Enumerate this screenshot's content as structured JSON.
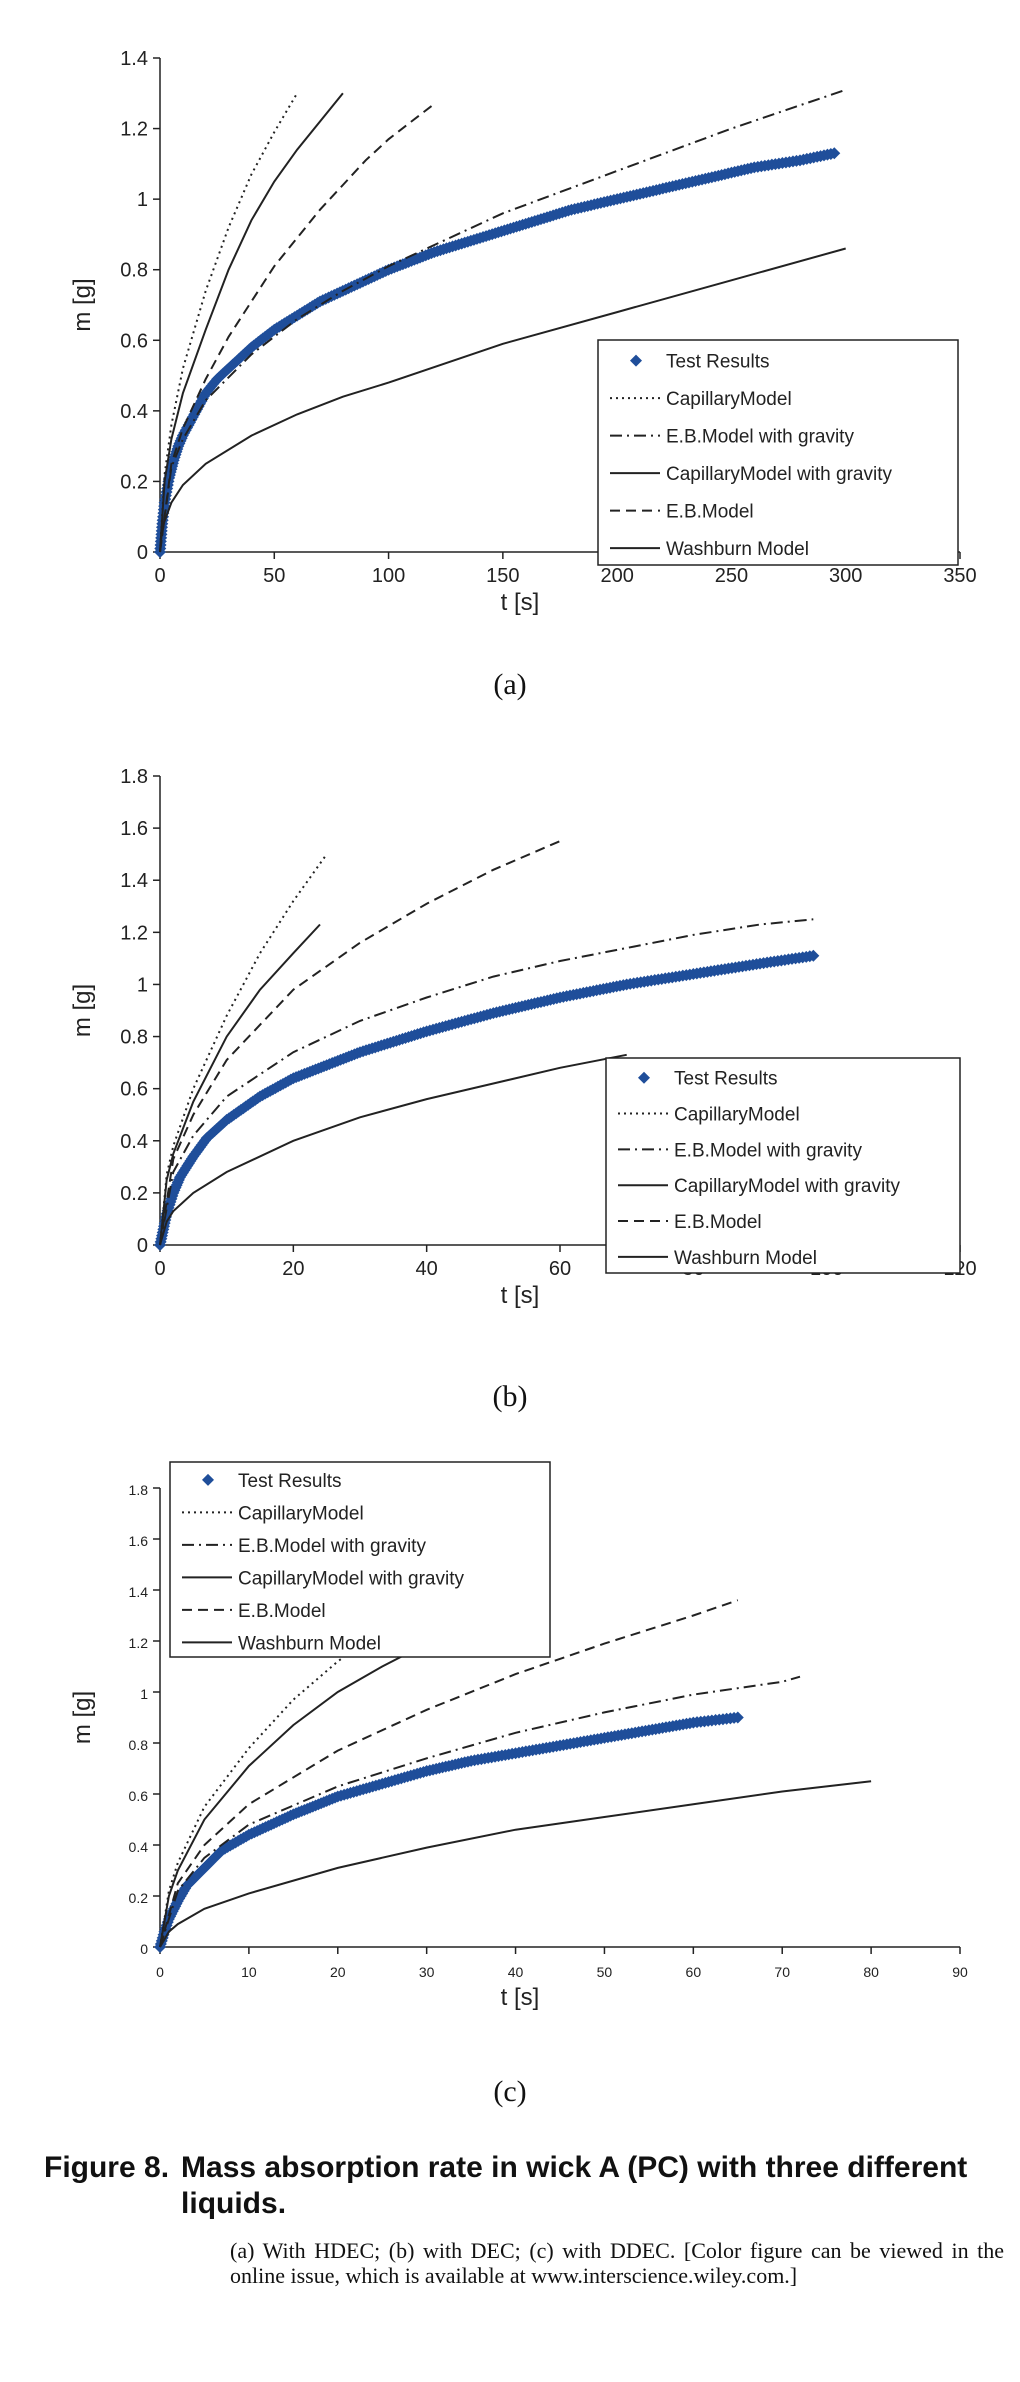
{
  "chart_data": [
    {
      "type": "scatter",
      "panel_label": "(a)",
      "xlabel": "t [s]",
      "ylabel": "m [g]",
      "xlim": [
        0,
        350
      ],
      "ylim": [
        0,
        1.4
      ],
      "xticks": [
        0,
        50,
        100,
        150,
        200,
        250,
        300,
        350
      ],
      "yticks": [
        0,
        0.2,
        0.4,
        0.6,
        0.8,
        1,
        1.2,
        1.4
      ],
      "xtick_labels": [
        "0",
        "50",
        "100",
        "150",
        "200",
        "250",
        "300",
        "350"
      ],
      "ytick_labels": [
        "0",
        "0.2",
        "0.4",
        "0.6",
        "0.8",
        "1",
        "1.2",
        "1.4"
      ],
      "grid": false,
      "legend_position": "center-right",
      "series": [
        {
          "name": "Test Results",
          "kind": "markers",
          "color": "#1f4e9a",
          "x": [
            0,
            1,
            2,
            4,
            6,
            8,
            10,
            15,
            20,
            25,
            30,
            40,
            50,
            60,
            70,
            80,
            90,
            100,
            120,
            140,
            160,
            180,
            200,
            220,
            240,
            260,
            280,
            295
          ],
          "y": [
            0,
            0.08,
            0.14,
            0.21,
            0.26,
            0.3,
            0.33,
            0.39,
            0.45,
            0.49,
            0.52,
            0.58,
            0.63,
            0.67,
            0.71,
            0.74,
            0.77,
            0.8,
            0.85,
            0.89,
            0.93,
            0.97,
            1.0,
            1.03,
            1.06,
            1.09,
            1.11,
            1.13
          ]
        },
        {
          "name": "CapillaryModel",
          "kind": "line",
          "dash": "dotted",
          "x": [
            0,
            2,
            5,
            10,
            20,
            30,
            40,
            50,
            60
          ],
          "y": [
            0,
            0.22,
            0.36,
            0.52,
            0.74,
            0.92,
            1.07,
            1.19,
            1.3
          ]
        },
        {
          "name": "E.B.Model with gravity",
          "kind": "line",
          "dash": "dashdot",
          "x": [
            0,
            5,
            10,
            20,
            40,
            60,
            80,
            100,
            120,
            150,
            200,
            250,
            300
          ],
          "y": [
            0,
            0.24,
            0.32,
            0.43,
            0.56,
            0.66,
            0.74,
            0.81,
            0.87,
            0.96,
            1.08,
            1.2,
            1.31
          ]
        },
        {
          "name": "CapillaryModel with gravity",
          "kind": "line",
          "dash": "solid",
          "x": [
            0,
            2,
            5,
            10,
            20,
            30,
            40,
            50,
            60,
            70,
            80
          ],
          "y": [
            0,
            0.2,
            0.32,
            0.45,
            0.63,
            0.8,
            0.94,
            1.05,
            1.14,
            1.22,
            1.3
          ]
        },
        {
          "name": "E.B.Model",
          "kind": "line",
          "dash": "dashed",
          "x": [
            0,
            5,
            10,
            20,
            30,
            40,
            50,
            60,
            70,
            80,
            90,
            100,
            110,
            120
          ],
          "y": [
            0,
            0.25,
            0.35,
            0.49,
            0.61,
            0.71,
            0.81,
            0.89,
            0.97,
            1.04,
            1.11,
            1.17,
            1.22,
            1.27
          ]
        },
        {
          "name": "Washburn Model",
          "kind": "line",
          "dash": "solid",
          "x": [
            0,
            1,
            5,
            10,
            20,
            40,
            60,
            80,
            100,
            150,
            200,
            250,
            300
          ],
          "y": [
            0,
            0.07,
            0.14,
            0.19,
            0.25,
            0.33,
            0.39,
            0.44,
            0.48,
            0.59,
            0.68,
            0.77,
            0.86
          ]
        }
      ]
    },
    {
      "type": "scatter",
      "panel_label": "(b)",
      "xlabel": "t [s]",
      "ylabel": "m [g]",
      "xlim": [
        0,
        120
      ],
      "ylim": [
        0,
        1.8
      ],
      "xticks": [
        0,
        20,
        40,
        60,
        80,
        100,
        120
      ],
      "yticks": [
        0,
        0.2,
        0.4,
        0.6,
        0.8,
        1,
        1.2,
        1.4,
        1.6,
        1.8
      ],
      "xtick_labels": [
        "0",
        "20",
        "40",
        "60",
        "80",
        "100",
        "120"
      ],
      "ytick_labels": [
        "0",
        "0.2",
        "0.4",
        "0.6",
        "0.8",
        "1",
        "1.2",
        "1.4",
        "1.6",
        "1.8"
      ],
      "grid": false,
      "legend_position": "center-right",
      "series": [
        {
          "name": "Test Results",
          "kind": "markers",
          "color": "#1f4e9a",
          "x": [
            0,
            0.5,
            1,
            2,
            3,
            5,
            7,
            10,
            15,
            20,
            25,
            30,
            40,
            50,
            60,
            70,
            80,
            90,
            98
          ],
          "y": [
            0,
            0.06,
            0.12,
            0.2,
            0.26,
            0.34,
            0.41,
            0.48,
            0.57,
            0.64,
            0.69,
            0.74,
            0.82,
            0.89,
            0.95,
            1.0,
            1.04,
            1.08,
            1.11
          ]
        },
        {
          "name": "CapillaryModel",
          "kind": "line",
          "dash": "dotted",
          "x": [
            0,
            1,
            2,
            5,
            10,
            15,
            20,
            25
          ],
          "y": [
            0,
            0.27,
            0.38,
            0.6,
            0.88,
            1.12,
            1.32,
            1.5
          ]
        },
        {
          "name": "E.B.Model with gravity",
          "kind": "line",
          "dash": "dashdot",
          "x": [
            0,
            2,
            5,
            10,
            20,
            30,
            40,
            50,
            60,
            70,
            80,
            90,
            98
          ],
          "y": [
            0,
            0.28,
            0.42,
            0.57,
            0.74,
            0.86,
            0.95,
            1.03,
            1.09,
            1.14,
            1.19,
            1.23,
            1.25
          ]
        },
        {
          "name": "CapillaryModel with gravity",
          "kind": "line",
          "dash": "solid",
          "x": [
            0,
            1,
            2,
            5,
            10,
            15,
            20,
            24
          ],
          "y": [
            0,
            0.25,
            0.35,
            0.55,
            0.8,
            0.98,
            1.12,
            1.23
          ]
        },
        {
          "name": "E.B.Model",
          "kind": "line",
          "dash": "dashed",
          "x": [
            0,
            2,
            5,
            10,
            20,
            30,
            40,
            50,
            60
          ],
          "y": [
            0,
            0.33,
            0.5,
            0.71,
            0.98,
            1.16,
            1.31,
            1.44,
            1.55
          ]
        },
        {
          "name": "Washburn Model",
          "kind": "line",
          "dash": "solid",
          "x": [
            0,
            1,
            2,
            5,
            10,
            20,
            30,
            40,
            50,
            60,
            70
          ],
          "y": [
            0,
            0.09,
            0.13,
            0.2,
            0.28,
            0.4,
            0.49,
            0.56,
            0.62,
            0.68,
            0.73
          ]
        }
      ]
    },
    {
      "type": "scatter",
      "panel_label": "(c)",
      "xlabel": "t [s]",
      "ylabel": "m [g]",
      "xlim": [
        0,
        90
      ],
      "ylim": [
        0,
        1.8
      ],
      "xticks": [
        0,
        10,
        20,
        30,
        40,
        50,
        60,
        70,
        80,
        90
      ],
      "yticks": [
        0,
        0.2,
        0.4,
        0.6,
        0.8,
        1,
        1.2,
        1.4,
        1.6,
        1.8
      ],
      "xtick_labels": [
        "0",
        "10",
        "20",
        "30",
        "40",
        "50",
        "60",
        "70",
        "80",
        "90"
      ],
      "ytick_labels": [
        "0",
        "0.2",
        "0.4",
        "0.6",
        "0.8",
        "1",
        "1.2",
        "1.4",
        "1.6",
        "1.8"
      ],
      "grid": false,
      "legend_position": "top-left",
      "series": [
        {
          "name": "Test Results",
          "kind": "markers",
          "color": "#1f4e9a",
          "x": [
            0,
            0.5,
            1,
            2,
            3,
            5,
            7,
            10,
            15,
            20,
            25,
            30,
            35,
            40,
            45,
            50,
            55,
            60,
            65
          ],
          "y": [
            0,
            0.06,
            0.11,
            0.18,
            0.24,
            0.31,
            0.38,
            0.44,
            0.52,
            0.59,
            0.64,
            0.69,
            0.73,
            0.76,
            0.79,
            0.82,
            0.85,
            0.88,
            0.9
          ]
        },
        {
          "name": "CapillaryModel",
          "kind": "line",
          "dash": "dotted",
          "x": [
            0,
            1,
            2,
            5,
            10,
            15,
            20,
            25
          ],
          "y": [
            0,
            0.22,
            0.33,
            0.55,
            0.78,
            0.97,
            1.12,
            1.25
          ]
        },
        {
          "name": "E.B.Model with gravity",
          "kind": "line",
          "dash": "dashdot",
          "x": [
            0,
            2,
            5,
            10,
            20,
            30,
            40,
            50,
            60,
            70,
            72
          ],
          "y": [
            0,
            0.22,
            0.35,
            0.48,
            0.63,
            0.74,
            0.84,
            0.92,
            0.99,
            1.04,
            1.06
          ]
        },
        {
          "name": "CapillaryModel with gravity",
          "kind": "line",
          "dash": "solid",
          "x": [
            0,
            1,
            2,
            5,
            10,
            15,
            20,
            25,
            30,
            35
          ],
          "y": [
            0,
            0.2,
            0.3,
            0.5,
            0.71,
            0.87,
            1.0,
            1.1,
            1.19,
            1.26
          ]
        },
        {
          "name": "E.B.Model",
          "kind": "line",
          "dash": "dashed",
          "x": [
            0,
            2,
            5,
            10,
            20,
            30,
            40,
            50,
            60,
            65
          ],
          "y": [
            0,
            0.25,
            0.4,
            0.56,
            0.77,
            0.93,
            1.07,
            1.19,
            1.3,
            1.36
          ]
        },
        {
          "name": "Washburn Model",
          "kind": "line",
          "dash": "solid",
          "x": [
            0,
            1,
            2,
            5,
            10,
            20,
            30,
            40,
            50,
            60,
            70,
            80
          ],
          "y": [
            0,
            0.06,
            0.09,
            0.15,
            0.21,
            0.31,
            0.39,
            0.46,
            0.51,
            0.56,
            0.61,
            0.65
          ]
        }
      ]
    }
  ],
  "panel_labels": [
    "(a)",
    "(b)",
    "(c)"
  ],
  "caption": {
    "figure_number": "Figure 8.",
    "title": "Mass absorption rate in wick A (PC) with three different liquids.",
    "text": "(a) With HDEC; (b) with DEC; (c) with DDEC. [Color figure can be viewed in the online issue, which is available at www.interscience.wiley.com.]"
  }
}
